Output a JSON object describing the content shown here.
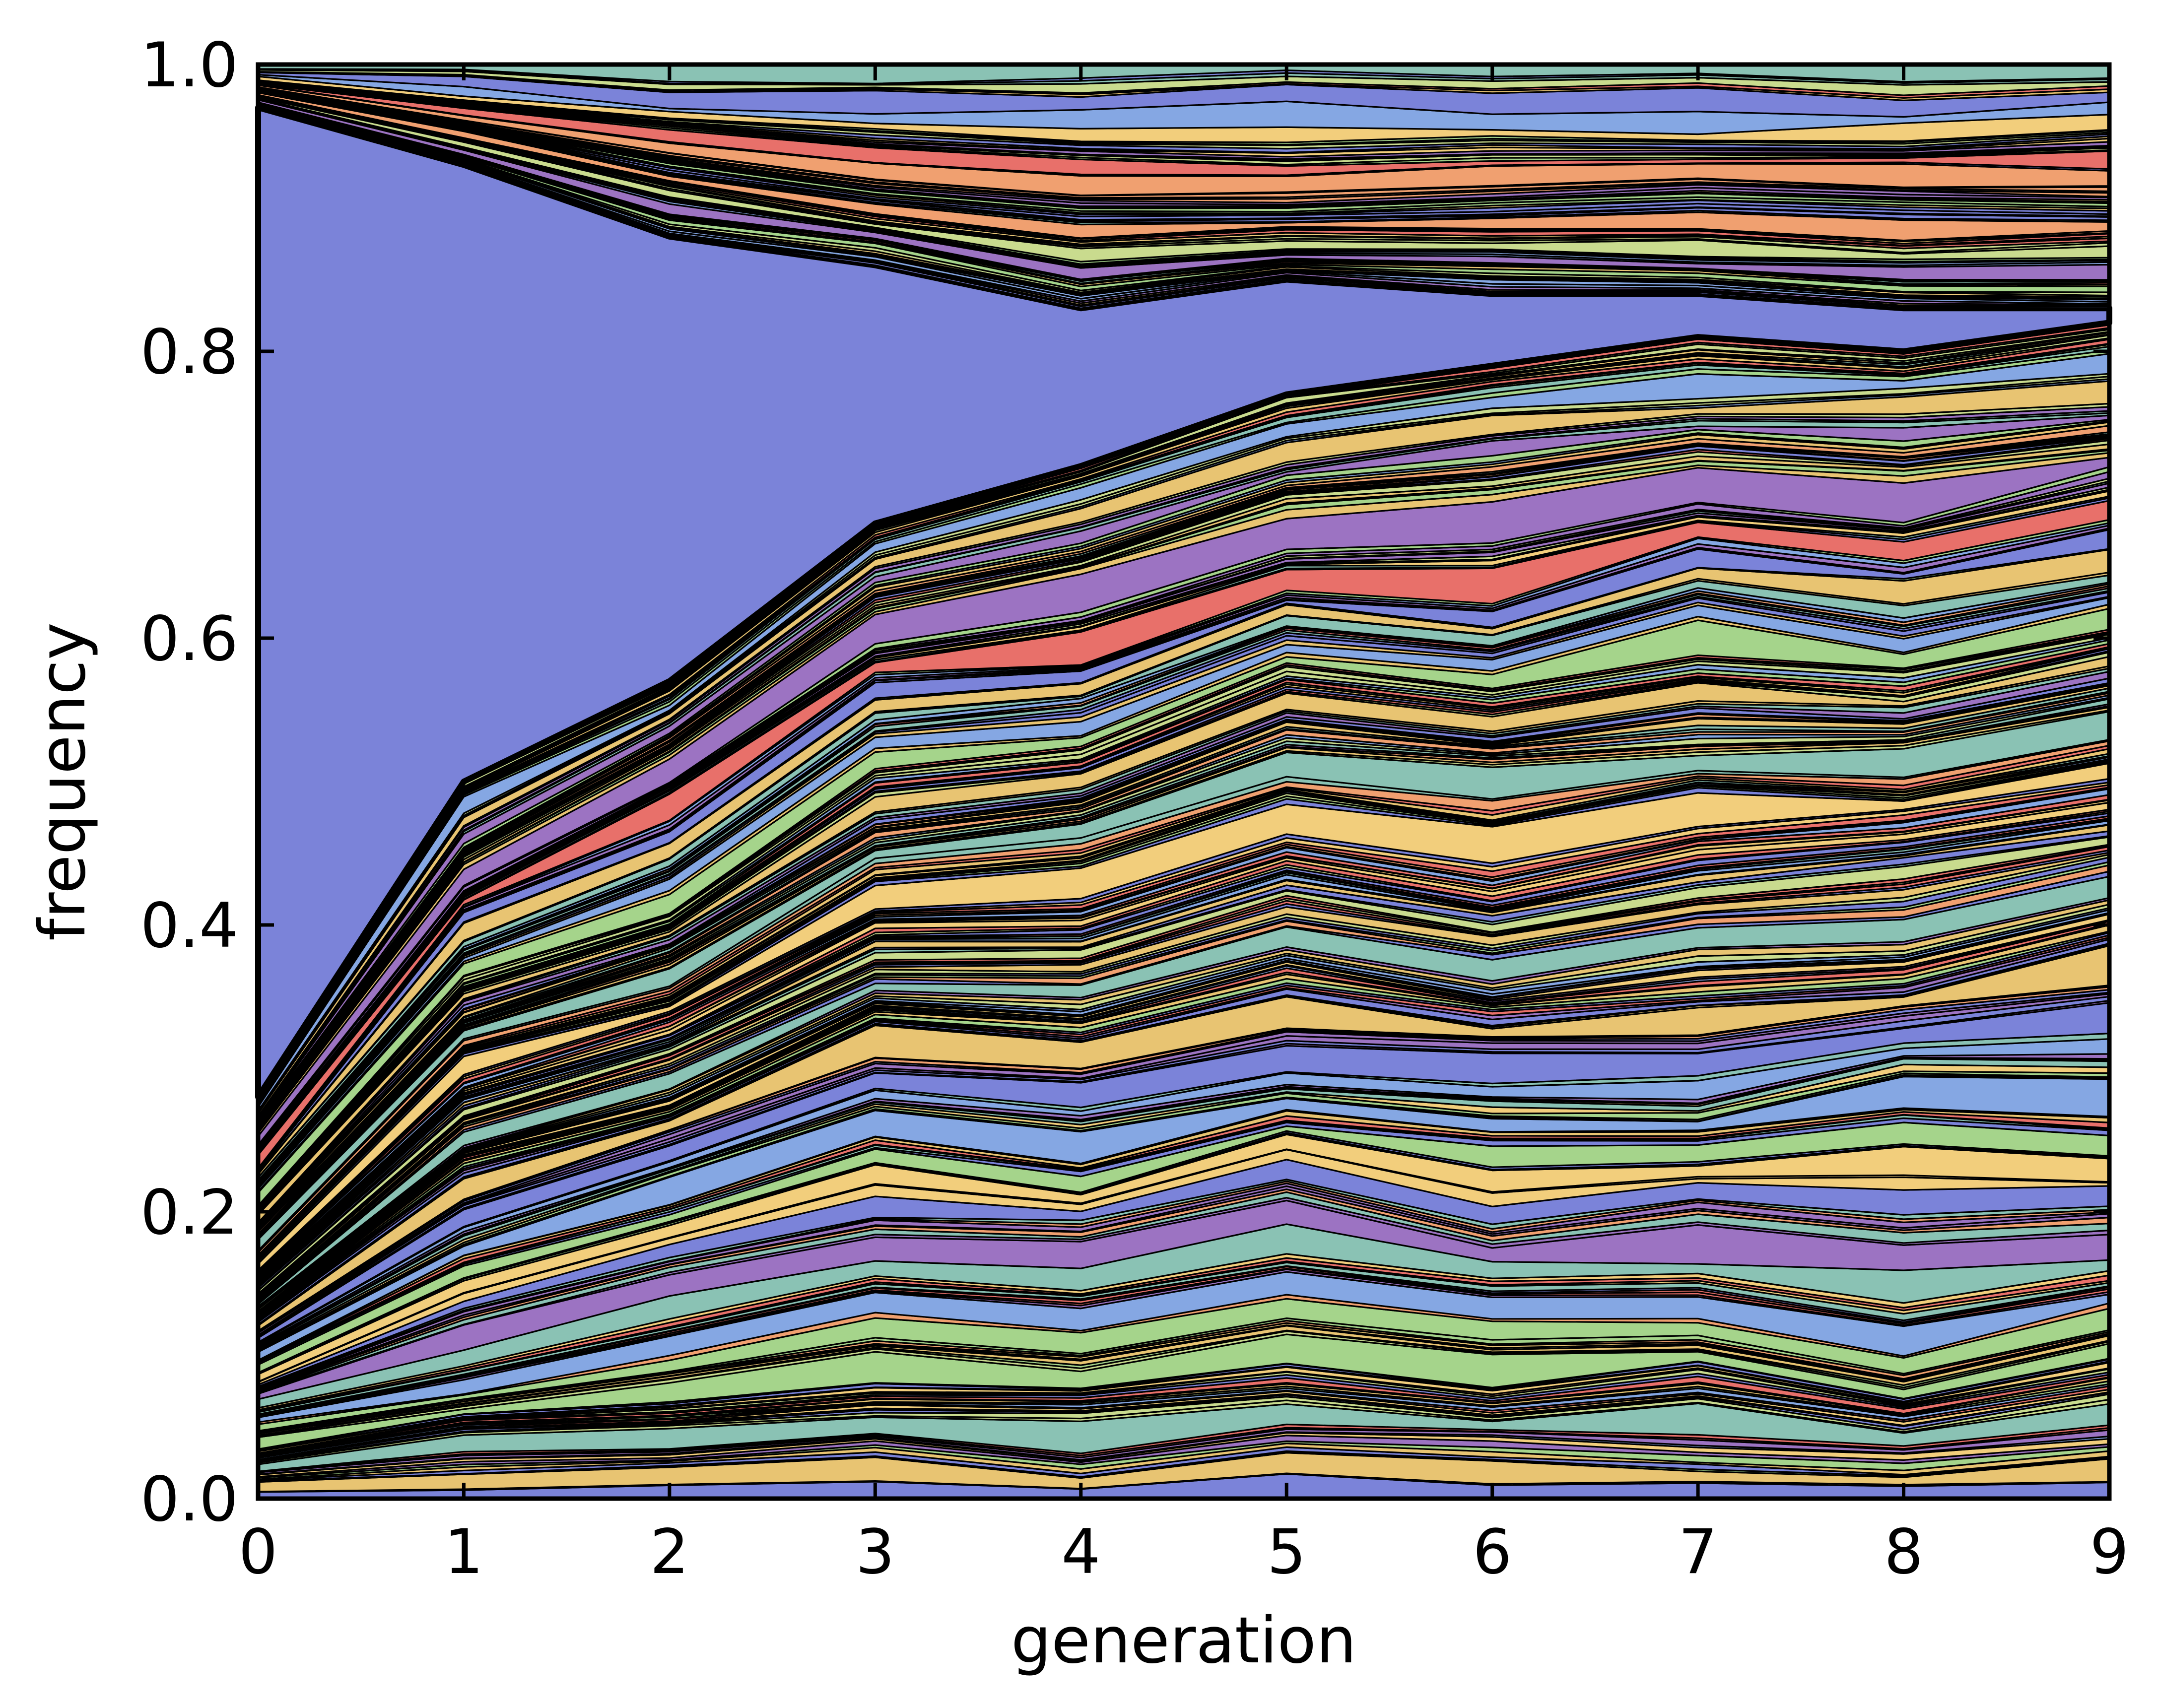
{
  "chart_data": {
    "type": "area",
    "stacked": true,
    "title": "",
    "xlabel": "generation",
    "ylabel": "frequency",
    "xlim": [
      0,
      9
    ],
    "ylim": [
      0.0,
      1.0
    ],
    "grid": false,
    "legend": "none",
    "x": [
      0,
      1,
      2,
      3,
      4,
      5,
      6,
      7,
      8,
      9
    ],
    "x_ticks": [
      "0",
      "1",
      "2",
      "3",
      "4",
      "5",
      "6",
      "7",
      "8",
      "9"
    ],
    "y_ticks": [
      "0.0",
      "0.2",
      "0.4",
      "0.6",
      "0.8",
      "1.0"
    ],
    "dominant_band": {
      "color": "#7b83d9",
      "lower": [
        0.28,
        0.5,
        0.57,
        0.68,
        0.72,
        0.77,
        0.79,
        0.81,
        0.8,
        0.82
      ],
      "upper": [
        0.97,
        0.93,
        0.88,
        0.86,
        0.83,
        0.85,
        0.84,
        0.84,
        0.83,
        0.83
      ]
    },
    "palette": [
      "#7b83d9",
      "#8ac2b4",
      "#c9db8e",
      "#e8c472",
      "#f0a070",
      "#e8706a",
      "#9c73c2",
      "#85a7e3",
      "#a5d48b",
      "#f2ce7c"
    ]
  }
}
